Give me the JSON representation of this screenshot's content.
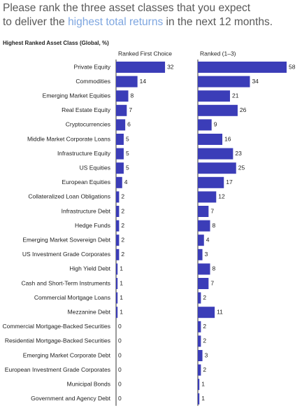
{
  "title": [
    "Please rank the three asset classes that you expect",
    "to deliver the",
    "highest total returns",
    "in the next 12 months."
  ],
  "chart_data": {
    "type": "bar",
    "orientation": "horizontal",
    "subtitle": "Highest Ranked Asset Class (Global, %)",
    "color": "#3b3db8",
    "categories": [
      "Private Equity",
      "Commodities",
      "Emerging Market Equities",
      "Real Estate Equity",
      "Cryptocurrencies",
      "Middle Market Corporate Loans",
      "Infrastructure Equity",
      "US Equities",
      "European Equities",
      "Collateralized Loan Obligations",
      "Infrastructure Debt",
      "Hedge Funds",
      "Emerging Market Sovereign Debt",
      "US Investment Grade Corporates",
      "High Yield Debt",
      "Cash and Short-Term Instruments",
      "Commercial Mortgage Loans",
      "Mezzanine Debt",
      "Commercial Mortgage-Backed Securities",
      "Residential Mortgage-Backed Securities",
      "Emerging Market Corporate Debt",
      "European Investment Grade Corporates",
      "Municipal Bonds",
      "Government and Agency Debt"
    ],
    "series": [
      {
        "name": "Ranked First Choice",
        "values": [
          32,
          14,
          8,
          7,
          6,
          5,
          5,
          5,
          4,
          2,
          2,
          2,
          2,
          2,
          1,
          1,
          1,
          1,
          0,
          0,
          0,
          0,
          0,
          0
        ]
      },
      {
        "name": "Ranked (1–3)",
        "values": [
          58,
          34,
          21,
          26,
          9,
          16,
          23,
          25,
          17,
          12,
          7,
          8,
          4,
          3,
          8,
          7,
          2,
          11,
          2,
          2,
          3,
          2,
          1,
          1
        ]
      }
    ]
  }
}
